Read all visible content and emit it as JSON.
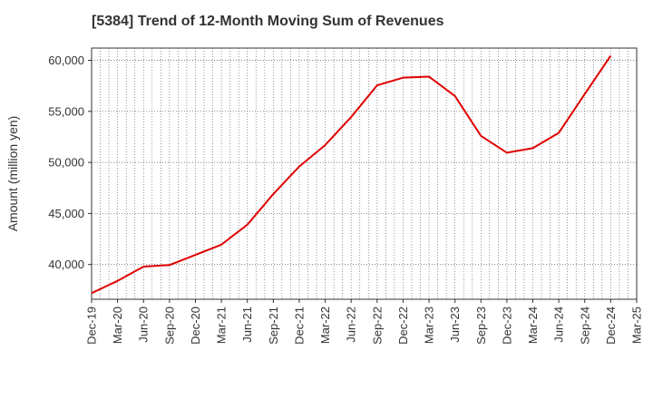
{
  "chart_data": {
    "type": "line",
    "title": "[5384]  Trend of 12-Month Moving Sum of Revenues",
    "xlabel": "",
    "ylabel": "Amount (million yen)",
    "ylim": [
      36600,
      61200
    ],
    "yticks": [
      40000,
      45000,
      50000,
      55000,
      60000
    ],
    "ytick_labels": [
      "40,000",
      "45,000",
      "50,000",
      "55,000",
      "60,000"
    ],
    "x_tick_labels": [
      "Dec-19",
      "Mar-20",
      "Jun-20",
      "Sep-20",
      "Dec-20",
      "Mar-21",
      "Jun-21",
      "Sep-21",
      "Dec-21",
      "Mar-22",
      "Jun-22",
      "Sep-22",
      "Dec-22",
      "Mar-23",
      "Jun-23",
      "Sep-23",
      "Dec-23",
      "Mar-24",
      "Jun-24",
      "Sep-24",
      "Dec-24",
      "Mar-25"
    ],
    "grid": true,
    "series": [
      {
        "color": "#e00000",
        "x": [
          "Dec-19",
          "Mar-20",
          "Jun-20",
          "Sep-20",
          "Dec-20",
          "Mar-21",
          "Jun-21",
          "Sep-21",
          "Dec-21",
          "Mar-22",
          "Jun-22",
          "Sep-22",
          "Dec-22",
          "Mar-23",
          "Jun-23",
          "Sep-23",
          "Dec-23",
          "Mar-24",
          "Jun-24",
          "Sep-24",
          "Dec-24"
        ],
        "values": [
          37200,
          38400,
          39800,
          39950,
          40950,
          41950,
          43900,
          46900,
          49600,
          51700,
          54450,
          57550,
          58300,
          58400,
          56500,
          52600,
          50950,
          51400,
          52900,
          56700,
          60450
        ]
      }
    ]
  }
}
